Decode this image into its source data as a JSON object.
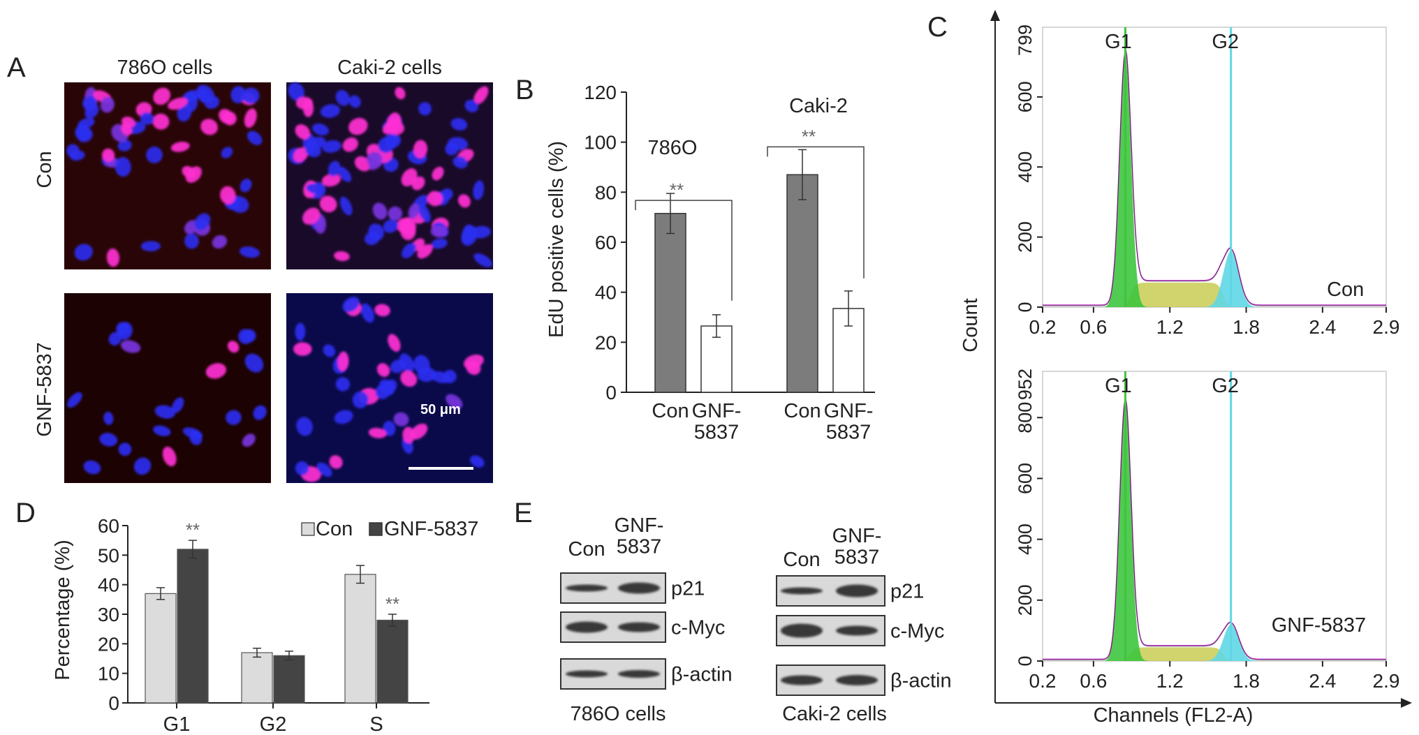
{
  "panels": {
    "A": {
      "letter": "A",
      "col_labels": [
        "786O cells",
        "Caki-2 cells"
      ],
      "row_labels": [
        "Con",
        "GNF-5837"
      ],
      "scale_bar": "50 μm"
    },
    "E": {
      "letter": "E",
      "blots": [
        {
          "lanes": [
            "Con",
            "GNF-\n5837"
          ],
          "bands": [
            "p21",
            "c-Myc",
            "β-actin"
          ],
          "caption": "786O cells"
        },
        {
          "lanes": [
            "Con",
            "GNF-\n5837"
          ],
          "bands": [
            "p21",
            "c-Myc",
            "β-actin"
          ],
          "caption": "Caki-2 cells"
        }
      ]
    }
  },
  "colors": {
    "nucleus_blue": "#2d2ef0",
    "edu_magenta": "#ff2fd2",
    "bar_dark": "#7c7c7c",
    "bar_light": "#dcdcdc",
    "bar_darkest": "#444444",
    "hist_green": "#3ec53e",
    "hist_yellow": "#c9cd52",
    "hist_cyan": "#5fd7e6",
    "fit_magenta": "#c030c8"
  },
  "chart_data": [
    {
      "panel": "B",
      "type": "bar",
      "ylabel": "EdU positive cells (%)",
      "ylim": [
        0,
        120
      ],
      "yticks": [
        0,
        20,
        40,
        60,
        80,
        100,
        120
      ],
      "groups": [
        {
          "name": "786O",
          "bars": [
            {
              "label": "Con",
              "value": 71.5,
              "error": 8,
              "fill": "dark"
            },
            {
              "label": "GNF-\n5837",
              "value": 26.5,
              "error": 4.5,
              "fill": "white"
            }
          ],
          "significance": "**"
        },
        {
          "name": "Caki-2",
          "bars": [
            {
              "label": "Con",
              "value": 87,
              "error": 10,
              "fill": "dark"
            },
            {
              "label": "GNF-\n5837",
              "value": 33.5,
              "error": 7,
              "fill": "white"
            }
          ],
          "significance": "**"
        }
      ]
    },
    {
      "panel": "C",
      "type": "area",
      "shared_ylabel": "Count",
      "shared_xlabel": "Channels (FL2-A)",
      "histograms": [
        {
          "label": "Con",
          "ymax_label": "799",
          "ylim": [
            0,
            799
          ],
          "yticks": [
            0,
            200,
            400,
            600
          ],
          "xticks": [
            "0.2",
            "0.6",
            "1.2",
            "1.8",
            "2.4",
            "2.9"
          ],
          "xlim": [
            0.2,
            2.9
          ],
          "markers": [
            {
              "name": "G1",
              "x": 0.85
            },
            {
              "name": "G2",
              "x": 1.68
            }
          ],
          "g1_peak": 720,
          "g2_peak": 160,
          "s_plateau": 70
        },
        {
          "label": "GNF-5837",
          "ymax_label": "952",
          "ylim": [
            0,
            952
          ],
          "yticks": [
            0,
            200,
            400,
            600,
            800
          ],
          "xticks": [
            "0.2",
            "0.6",
            "1.2",
            "1.8",
            "2.4",
            "2.9"
          ],
          "xlim": [
            0.2,
            2.9
          ],
          "markers": [
            {
              "name": "G1",
              "x": 0.85
            },
            {
              "name": "G2",
              "x": 1.68
            }
          ],
          "g1_peak": 850,
          "g2_peak": 120,
          "s_plateau": 45
        }
      ]
    },
    {
      "panel": "D",
      "type": "bar",
      "ylabel": "Percentage (%)",
      "ylim": [
        0,
        60
      ],
      "yticks": [
        0,
        10,
        20,
        30,
        40,
        50,
        60
      ],
      "categories": [
        "G1",
        "G2",
        "S"
      ],
      "series": [
        {
          "name": "Con",
          "values": [
            37,
            17,
            43.5
          ],
          "errors": [
            2,
            1.5,
            3
          ],
          "fill": "light"
        },
        {
          "name": "GNF-5837",
          "values": [
            52,
            16,
            28
          ],
          "errors": [
            3,
            1.5,
            2
          ],
          "fill": "darkest"
        }
      ],
      "significance": [
        "**",
        "",
        "**"
      ],
      "legend": "top-right"
    }
  ]
}
